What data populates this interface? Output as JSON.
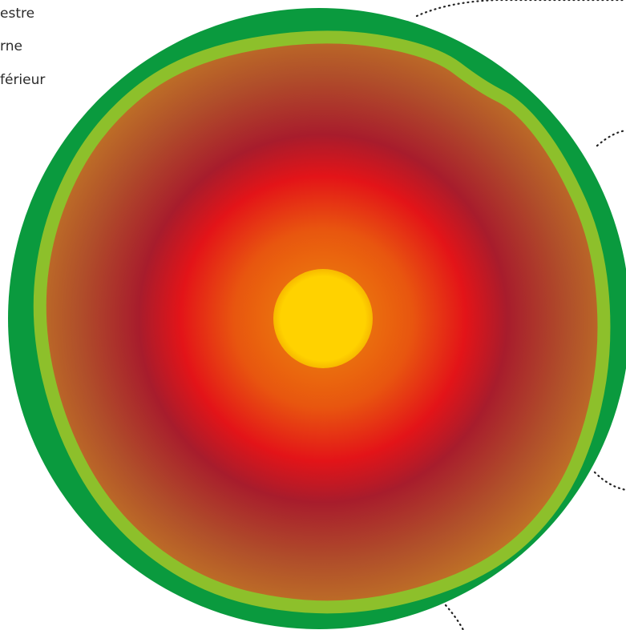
{
  "labels": [
    "estre",
    "rne",
    "férieur"
  ]
}
